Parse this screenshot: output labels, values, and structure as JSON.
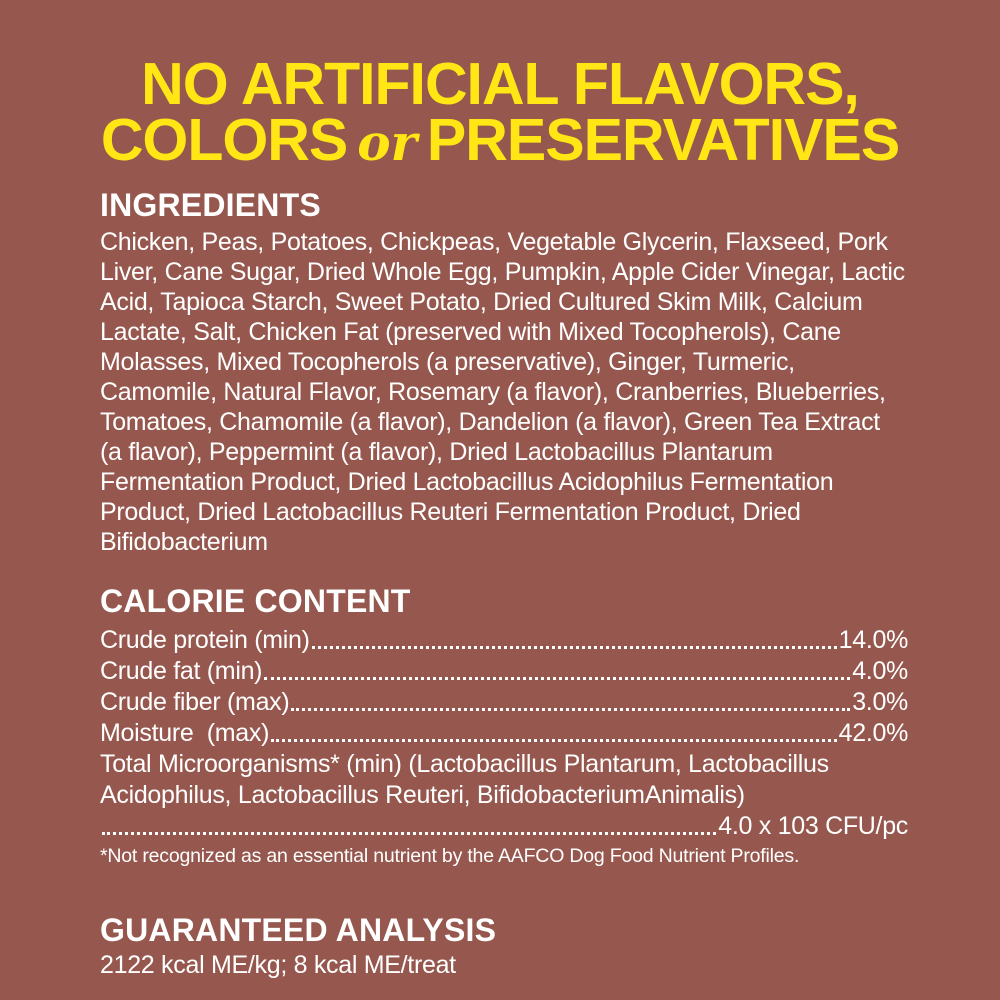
{
  "colors": {
    "background": "#96584E",
    "headline_yellow": "#FFE614",
    "text_white": "#FFFFFF"
  },
  "headline": {
    "line1": "NO ARTIFICIAL FLAVORS,",
    "line2_prefix": "COLORS",
    "line2_script": "or",
    "line2_suffix": "PRESERVATIVES"
  },
  "ingredients": {
    "heading": "INGREDIENTS",
    "text": "Chicken, Peas, Potatoes, Chickpeas, Vegetable Glycerin, Flaxseed, Pork Liver, Cane Sugar, Dried Whole Egg, Pumpkin, Apple Cider Vinegar, Lactic Acid, Tapioca Starch, Sweet Potato, Dried Cultured Skim Milk, Calcium Lactate, Salt, Chicken Fat (preserved with Mixed Tocopherols), Cane Molasses, Mixed Tocopherols (a preservative), Ginger, Turmeric, Camomile, Natural Flavor, Rosemary (a flavor), Cranberries, Blueberries, Tomatoes, Chamomile (a flavor), Dandelion (a flavor), Green Tea Extract (a flavor), Peppermint (a flavor), Dried Lactobacillus Plantarum Fermentation Product, Dried Lactobacillus Acidophilus Fermentation Product, Dried Lactobacillus Reuteri Fermentation Product, Dried Bifidobacterium"
  },
  "calorie_content": {
    "heading": "CALORIE CONTENT",
    "rows": [
      {
        "label": "Crude protein (min)",
        "value": "14.0%"
      },
      {
        "label": "Crude fat (min)",
        "value": "4.0%"
      },
      {
        "label": "Crude fiber (max)",
        "value": "3.0%"
      },
      {
        "label": "Moisture  (max)",
        "value": "42.0%"
      }
    ],
    "microorganisms": {
      "label": "Total Microorganisms* (min) (Lactobacillus Plantarum, Lactobacillus Acidophilus, Lactobacillus Reuteri, BifidobacteriumAnimalis)",
      "value": "4.0 x 103 CFU/pc"
    },
    "footnote": "*Not recognized as an essential nutrient by the AAFCO Dog Food Nutrient Profiles."
  },
  "guaranteed_analysis": {
    "heading": "GUARANTEED ANALYSIS",
    "text": "2122 kcal ME/kg; 8 kcal ME/treat"
  }
}
